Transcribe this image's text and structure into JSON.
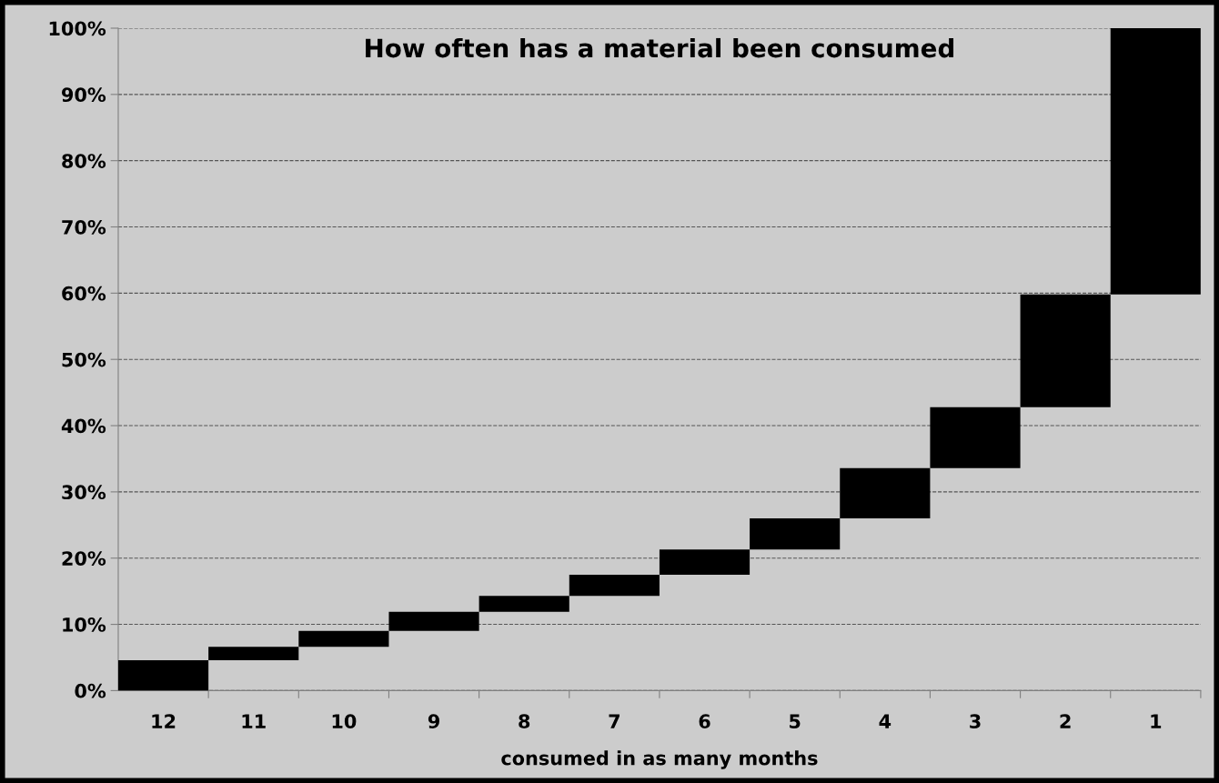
{
  "chart_data": {
    "type": "bar",
    "title": "How often has a material been consumed",
    "xlabel": "consumed in as many months",
    "categories": [
      "12",
      "11",
      "10",
      "9",
      "8",
      "7",
      "6",
      "5",
      "4",
      "3",
      "2",
      "1"
    ],
    "values": [
      4.6,
      2.0,
      2.4,
      2.9,
      2.4,
      3.2,
      3.8,
      4.7,
      7.6,
      9.2,
      17.0,
      40.2
    ],
    "base": [
      0,
      4.6,
      6.6,
      9.0,
      11.9,
      14.3,
      17.5,
      21.3,
      26.0,
      33.6,
      42.8,
      59.8
    ],
    "color": "#000000",
    "ylim": [
      0,
      100
    ],
    "yticks": [
      {
        "value": 0,
        "label": "0%"
      },
      {
        "value": 10,
        "label": "10%"
      },
      {
        "value": 20,
        "label": "20%"
      },
      {
        "value": 30,
        "label": "30%"
      },
      {
        "value": 40,
        "label": "40%"
      },
      {
        "value": 50,
        "label": "50%"
      },
      {
        "value": 60,
        "label": "60%"
      },
      {
        "value": 70,
        "label": "70%"
      },
      {
        "value": 80,
        "label": "80%"
      },
      {
        "value": 90,
        "label": "90%"
      },
      {
        "value": 100,
        "label": "100%"
      }
    ],
    "grid": "y",
    "legend": false
  }
}
